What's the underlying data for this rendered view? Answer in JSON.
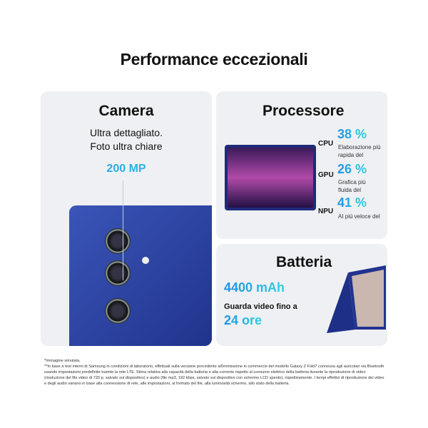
{
  "title": "Performance eccezionali",
  "camera": {
    "heading": "Camera",
    "line1": "Ultra dettagliato.",
    "line2": "Foto ultra chiare",
    "mp": "200 MP"
  },
  "processor": {
    "heading": "Processore",
    "items": [
      {
        "label": "CPU",
        "value": "38 %",
        "desc": "Elaborazione più rapida del"
      },
      {
        "label": "GPU",
        "value": "26 %",
        "desc": "Grafica più fluida del"
      },
      {
        "label": "NPU",
        "value": "41 %",
        "desc": "AI più veloce del"
      }
    ]
  },
  "battery": {
    "heading": "Batteria",
    "capacity": "4400 mAh",
    "line": "Guarda video fino a",
    "hours": "24 ore"
  },
  "footnote": {
    "l1": "*Immagine simulata.",
    "l2": "**In base a test interni di Samsung in condizioni di laboratorio, effettuati sulla versione precedente all'immissione in commercio del modello Galaxy Z Fold7 connessa agli auricolari via Bluetooth usando impostazioni predefinite tramite la rete LTE. Stima relativa alla capacità della batteria e alla corrente rispetto al consumo elettrico della batteria durante la riproduzione di video (risoluzione del file video di 720 p, salvato sul dispositivo) e audio (file mp3, 192 kbps, salvato sul dispositivo con schermo LCD spento), rispettivamente. I tempi effettivi di riproduzione dei video e degli audio variano  in base alla connessione di rete, alle impostazioni, al formato del file, alla luminosità schermo, allo stato della batteria."
  },
  "colors": {
    "accent": "#1e9be6",
    "card": "#eef0f3"
  }
}
